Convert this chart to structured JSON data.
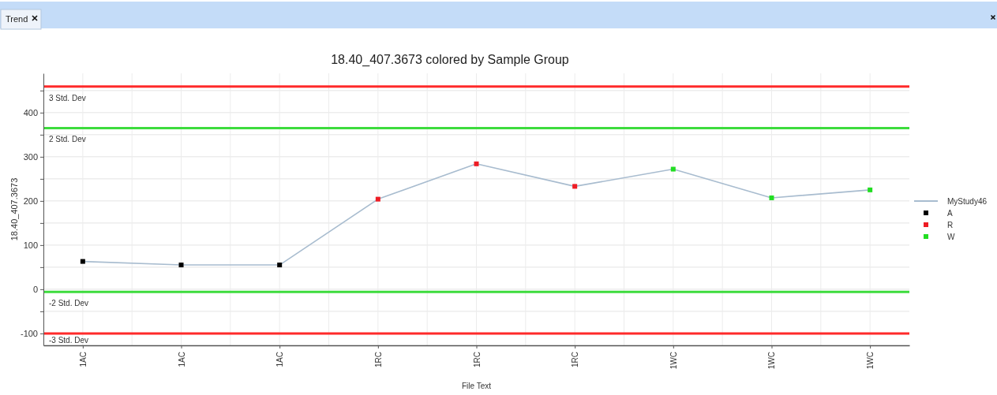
{
  "chart_data": {
    "type": "line",
    "title": "18.40_407.3673 colored by Sample Group",
    "xlabel": "File Text",
    "ylabel": "18.40_407.3673",
    "annotations": [
      "Trend"
    ],
    "categories": [
      "1AC",
      "1AC",
      "1AC",
      "1RC",
      "1RC",
      "1RC",
      "1WC",
      "1WC",
      "1WC"
    ],
    "series": [
      {
        "name": "MyStudy46",
        "color": "#a8bccf",
        "marker": "none",
        "values": [
          63,
          55,
          55,
          204,
          284,
          233,
          272,
          207,
          225
        ]
      },
      {
        "name": "A",
        "type": "scatter",
        "color": "#000000",
        "values": [
          63,
          55,
          55,
          null,
          null,
          null,
          null,
          null,
          null
        ]
      },
      {
        "name": "R",
        "type": "scatter",
        "color": "#ee1c24",
        "values": [
          null,
          null,
          null,
          204,
          284,
          233,
          null,
          null,
          null
        ]
      },
      {
        "name": "W",
        "type": "scatter",
        "color": "#22dd22",
        "values": [
          null,
          null,
          null,
          null,
          null,
          null,
          272,
          207,
          225
        ]
      }
    ],
    "ylim": [
      -127,
      489
    ],
    "yticks": [
      -100,
      {
        "value": -50,
        "label": null
      },
      0,
      {
        "value": 50,
        "label": null
      },
      100,
      {
        "value": 150,
        "label": null
      },
      200,
      {
        "value": 250,
        "label": null
      },
      300,
      {
        "value": 350,
        "label": null
      },
      400,
      {
        "value": 450,
        "label": null
      }
    ],
    "ref_lines": [
      {
        "axis": "y",
        "value": 459,
        "label": "3 Std. Dev",
        "color": "#ff2a2a"
      },
      {
        "axis": "y",
        "value": 365,
        "label": "2 Std. Dev",
        "color": "#3ddc3d"
      },
      {
        "axis": "y",
        "value": -6,
        "label": "-2 Std. Dev",
        "color": "#3ddc3d"
      },
      {
        "axis": "y",
        "value": -100,
        "label": "-3 Std. Dev",
        "color": "#ff2a2a"
      }
    ],
    "grid": true,
    "legend": "right",
    "marker": "square"
  }
}
